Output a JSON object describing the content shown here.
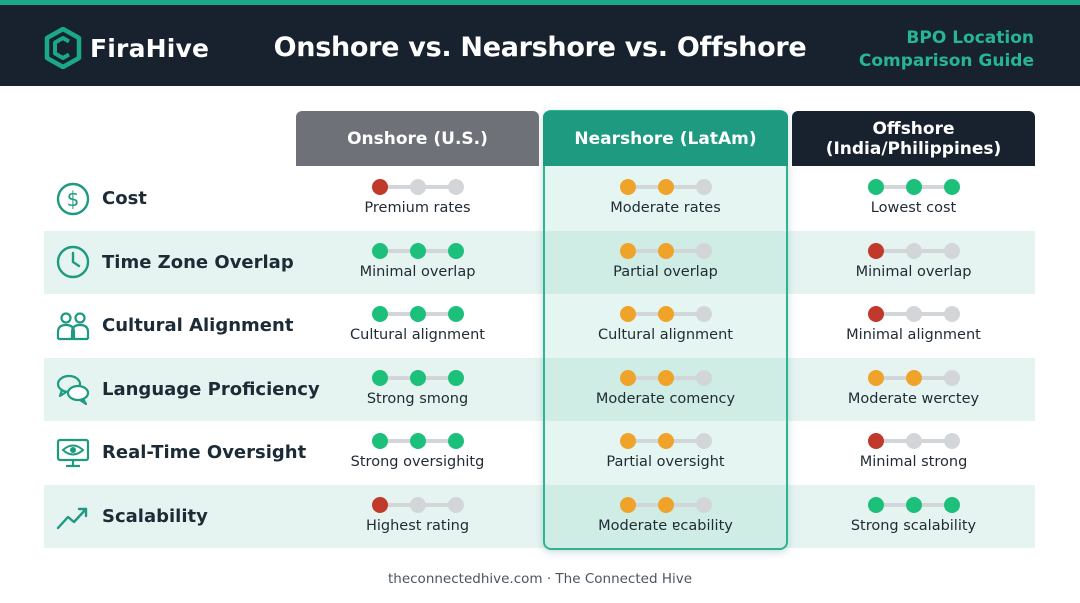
{
  "header": {
    "logo_text": "FiraHive",
    "title": "Onshore vs. Nearshore vs. Offshore",
    "guide_line1": "BPO Location",
    "guide_line2": "Comparison Guide"
  },
  "columns": {
    "onshore": "Onshore (U.S.)",
    "nearshore": "Nearshore (LatAm)",
    "offshore_line1": "Offshore",
    "offshore_line2": "(India/Philippines)"
  },
  "colors": {
    "red": "#c0392b",
    "green": "#1cc07b",
    "orange": "#efa32a",
    "gray": "#d3d6d9",
    "accent": "#1d9a80",
    "navy": "#17222e"
  },
  "rows": [
    {
      "label": "Cost",
      "icon": "dollar-circle-icon",
      "onshore": {
        "text": "Premium rates",
        "rating": [
          "red",
          "gray",
          "gray"
        ]
      },
      "nearshore": {
        "text": "Moderate rates",
        "rating": [
          "orange",
          "orange",
          "gray"
        ]
      },
      "offshore": {
        "text": "Lowest cost",
        "rating": [
          "green",
          "green",
          "green"
        ]
      }
    },
    {
      "label": "Time Zone Overlap",
      "icon": "clock-icon",
      "onshore": {
        "text": "Minimal overlap",
        "rating": [
          "green",
          "green",
          "green"
        ]
      },
      "nearshore": {
        "text": "Partial overlap",
        "rating": [
          "orange",
          "orange",
          "gray"
        ]
      },
      "offshore": {
        "text": "Minimal overlap",
        "rating": [
          "red",
          "gray",
          "gray"
        ]
      }
    },
    {
      "label": "Cultural Alignment",
      "icon": "people-icon",
      "onshore": {
        "text": "Cultural alignment",
        "rating": [
          "green",
          "green",
          "green"
        ]
      },
      "nearshore": {
        "text": "Cultural alignment",
        "rating": [
          "orange",
          "orange",
          "gray"
        ]
      },
      "offshore": {
        "text": "Minimal alignment",
        "rating": [
          "red",
          "gray",
          "gray"
        ]
      }
    },
    {
      "label": "Language Proficiency",
      "icon": "chat-bubbles-icon",
      "onshore": {
        "text": "Strong smong",
        "rating": [
          "green",
          "green",
          "green"
        ]
      },
      "nearshore": {
        "text": "Moderate comency",
        "rating": [
          "orange",
          "orange",
          "gray"
        ]
      },
      "offshore": {
        "text": "Moderate werctey",
        "rating": [
          "orange",
          "orange",
          "gray"
        ]
      }
    },
    {
      "label": "Real-Time Oversight",
      "icon": "monitor-eye-icon",
      "onshore": {
        "text": "Strong oversighitg",
        "rating": [
          "green",
          "green",
          "green"
        ]
      },
      "nearshore": {
        "text": "Partial oversight",
        "rating": [
          "orange",
          "orange",
          "gray"
        ]
      },
      "offshore": {
        "text": "Minimal strong",
        "rating": [
          "red",
          "gray",
          "gray"
        ]
      }
    },
    {
      "label": "Scalability",
      "icon": "trend-up-icon",
      "onshore": {
        "text": "Highest rating",
        "rating": [
          "red",
          "gray",
          "gray"
        ]
      },
      "nearshore": {
        "text": "Moderate ɐcability",
        "rating": [
          "orange",
          "orange",
          "gray"
        ]
      },
      "offshore": {
        "text": "Strong scalability",
        "rating": [
          "green",
          "green",
          "green"
        ]
      }
    }
  ],
  "footer": "theconnectedhive.com · The Connected Hive"
}
